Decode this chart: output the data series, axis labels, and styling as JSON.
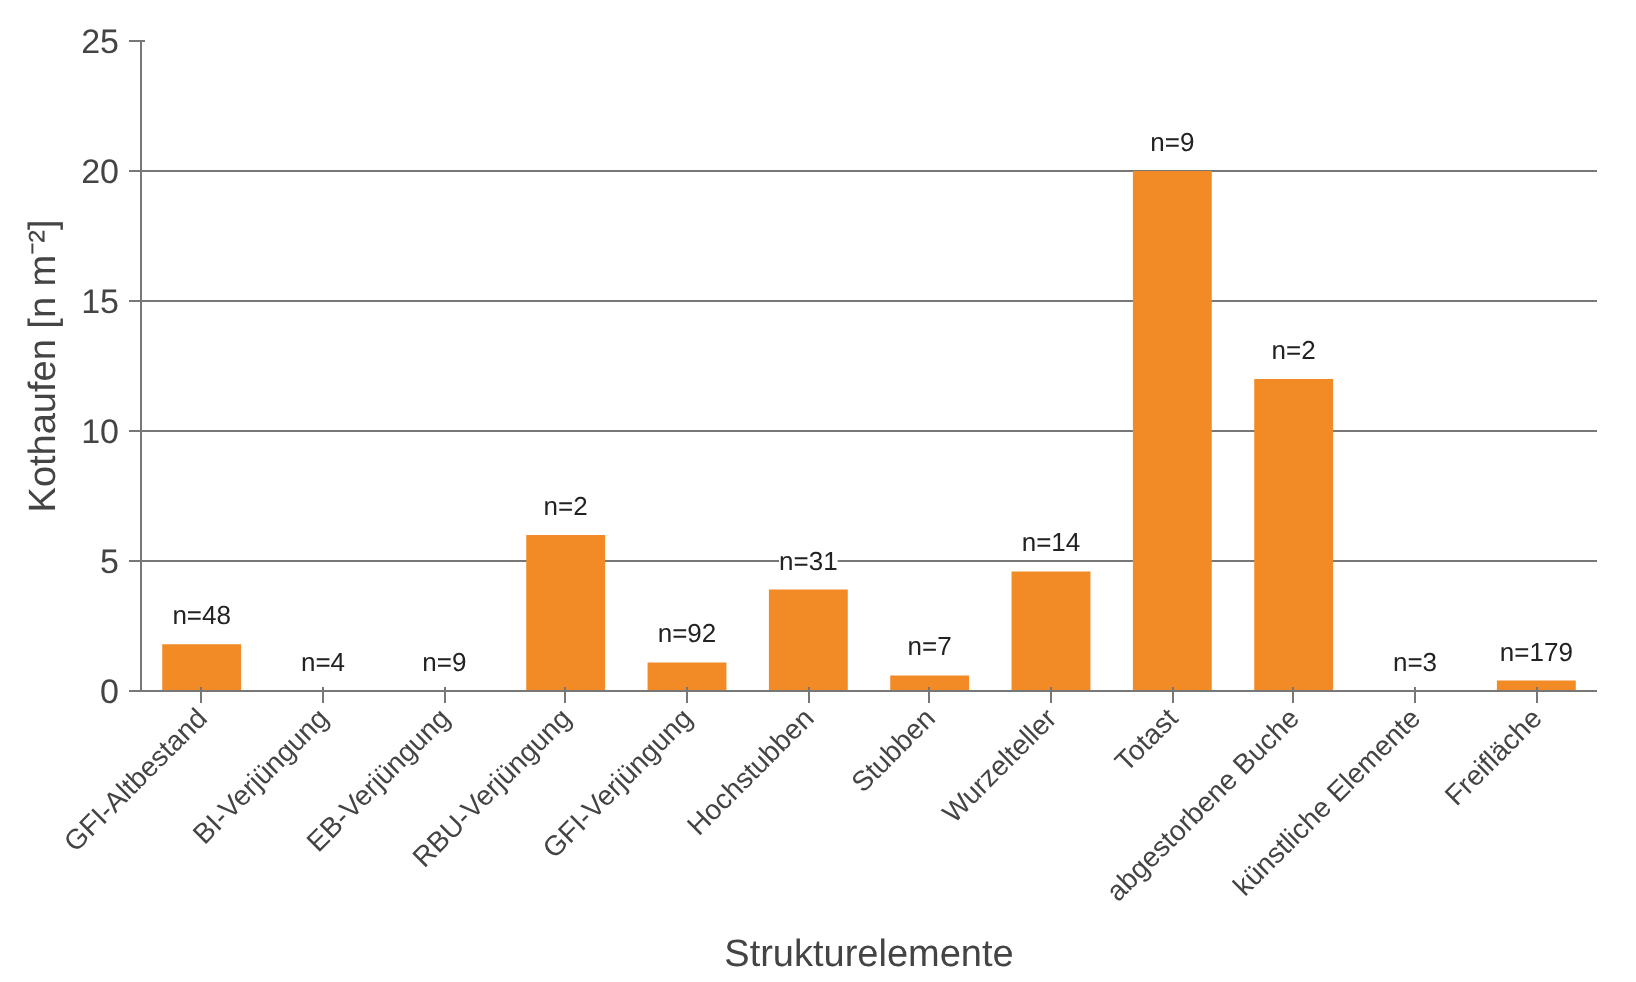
{
  "chart_data": {
    "type": "bar",
    "xlabel": "Strukturelemente",
    "ylabel": "Kothaufen [n m⁻²]",
    "categories": [
      "GFI-Altbestand",
      "BI-Verjüngung",
      "EB-Verjüngung",
      "RBU-Verjüngung",
      "GFI-Verjüngung",
      "Hochstubben",
      "Stubben",
      "Wurzelteller",
      "Totast",
      "abgestorbene Buche",
      "künstliche Elemente",
      "Freifläche"
    ],
    "values": [
      1.8,
      0,
      0,
      6.0,
      1.1,
      3.9,
      0.6,
      4.6,
      20,
      12,
      0,
      0.4
    ],
    "annotations": [
      {
        "text": "n=48",
        "x": "GFI-Altbestand",
        "y": 1.8
      },
      {
        "text": "n=4",
        "x": "BI-Verjüngung",
        "y": 0
      },
      {
        "text": "n=9",
        "x": "EB-Verjüngung",
        "y": 0
      },
      {
        "text": "n=2",
        "x": "RBU-Verjüngung",
        "y": 6.0
      },
      {
        "text": "n=92",
        "x": "GFI-Verjüngung",
        "y": 1.1
      },
      {
        "text": "n=31",
        "x": "Hochstubben",
        "y": 3.9
      },
      {
        "text": "n=7",
        "x": "Stubben",
        "y": 0.6
      },
      {
        "text": "n=14",
        "x": "Wurzelteller",
        "y": 4.6
      },
      {
        "text": "n=9",
        "x": "Totast",
        "y": 20
      },
      {
        "text": "n=2",
        "x": "abgestorbene Buche",
        "y": 12
      },
      {
        "text": "n=3",
        "x": "künstliche Elemente",
        "y": 0
      },
      {
        "text": "n=179",
        "x": "Freifläche",
        "y": 0.4
      }
    ],
    "color": "#f28a25",
    "ylim": [
      0,
      25
    ],
    "yticks": [
      0,
      5,
      10,
      15,
      20,
      25
    ],
    "grid": "y"
  }
}
